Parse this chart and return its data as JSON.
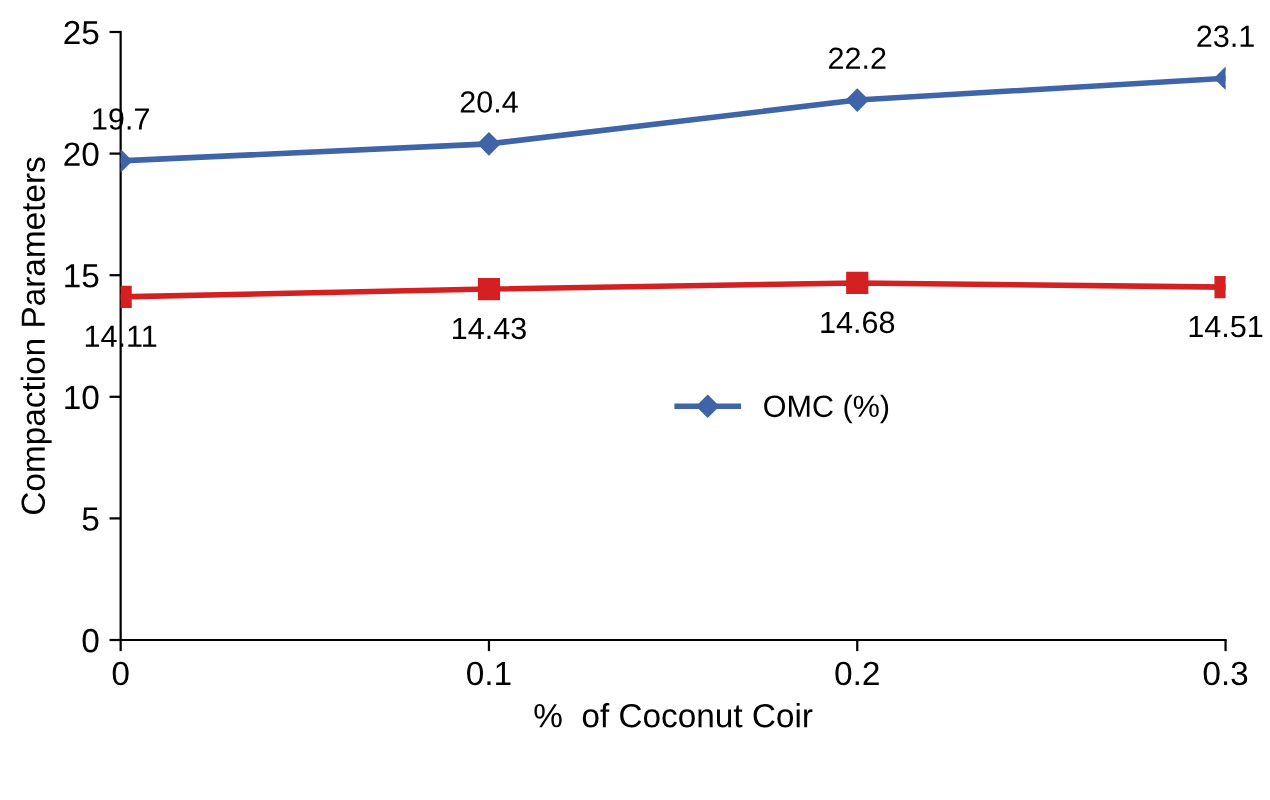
{
  "chart_data": {
    "type": "line",
    "xlabel": "%  of Coconut Coir",
    "ylabel": "Compaction Parameters",
    "x": [
      0,
      0.1,
      0.2,
      0.3
    ],
    "series": [
      {
        "name": "OMC (%)",
        "color": "#3f64a8",
        "marker": "diamond",
        "values": [
          19.7,
          20.4,
          22.2,
          23.1
        ]
      },
      {
        "color": "#d42020",
        "marker": "square",
        "values": [
          14.11,
          14.43,
          14.68,
          14.51
        ]
      }
    ],
    "xlim": [
      0,
      0.3
    ],
    "xticks": [
      0,
      0.1,
      0.2,
      0.3
    ],
    "ylim": [
      0,
      25
    ],
    "yticks": [
      0,
      5,
      10,
      15,
      20,
      25
    ],
    "grid": false,
    "legend": "center",
    "data_labels": true,
    "line_style": "solid"
  }
}
